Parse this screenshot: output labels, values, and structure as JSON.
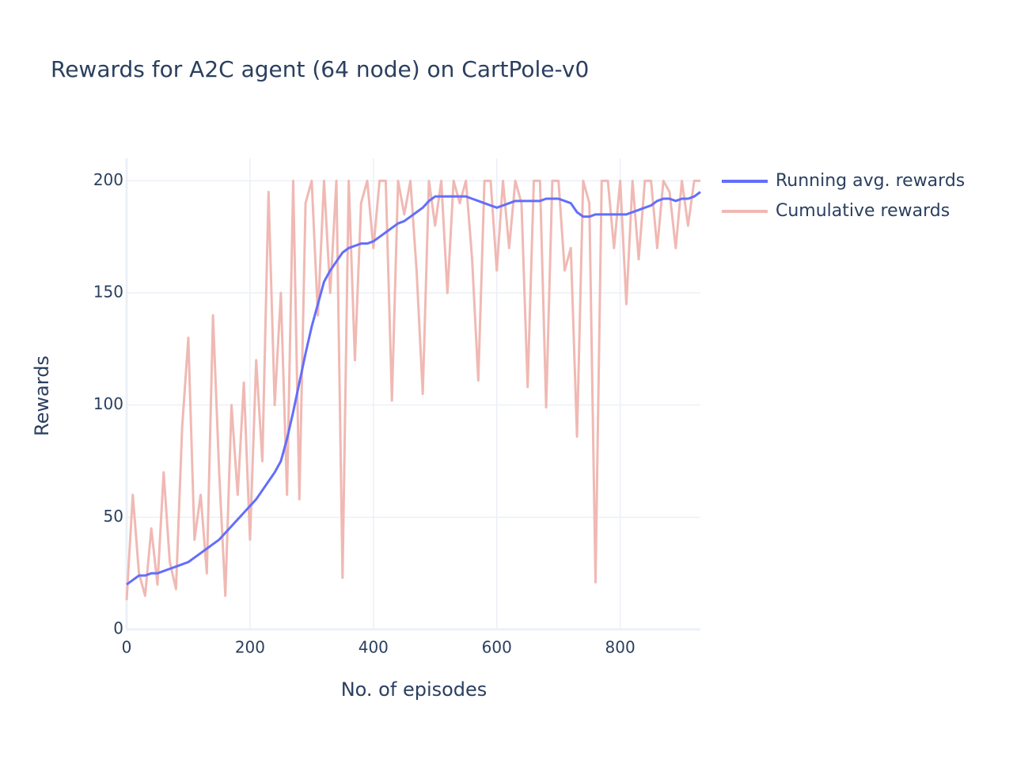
{
  "chart_data": {
    "type": "line",
    "title": "Rewards for A2C agent (64 node) on CartPole-v0",
    "x_label": "No. of episodes",
    "y_label": "Rewards",
    "x": [
      0,
      10,
      20,
      30,
      40,
      50,
      60,
      70,
      80,
      90,
      100,
      110,
      120,
      130,
      140,
      150,
      160,
      170,
      180,
      190,
      200,
      210,
      220,
      230,
      240,
      250,
      260,
      270,
      280,
      290,
      300,
      310,
      320,
      330,
      340,
      350,
      360,
      370,
      380,
      390,
      400,
      410,
      420,
      430,
      440,
      450,
      460,
      470,
      480,
      490,
      500,
      510,
      520,
      530,
      540,
      550,
      560,
      570,
      580,
      590,
      600,
      610,
      620,
      630,
      640,
      650,
      660,
      670,
      680,
      690,
      700,
      710,
      720,
      730,
      740,
      750,
      760,
      770,
      780,
      790,
      800,
      810,
      820,
      830,
      840,
      850,
      860,
      870,
      880,
      890,
      900,
      910,
      920,
      930
    ],
    "series": [
      {
        "name": "Running avg. rewards",
        "color": "#636efa",
        "values": [
          20,
          22,
          24,
          24,
          25,
          25,
          26,
          27,
          28,
          29,
          30,
          32,
          34,
          36,
          38,
          40,
          43,
          46,
          49,
          52,
          55,
          58,
          62,
          66,
          70,
          75,
          85,
          97,
          110,
          123,
          135,
          145,
          155,
          160,
          164,
          168,
          170,
          171,
          172,
          172,
          173,
          175,
          177,
          179,
          181,
          182,
          184,
          186,
          188,
          191,
          193,
          193,
          193,
          193,
          193,
          193,
          192,
          191,
          190,
          189,
          188,
          189,
          190,
          191,
          191,
          191,
          191,
          191,
          192,
          192,
          192,
          191,
          190,
          186,
          184,
          184,
          185,
          185,
          185,
          185,
          185,
          185,
          186,
          187,
          188,
          189,
          191,
          192,
          192,
          191,
          192,
          192,
          193,
          195
        ]
      },
      {
        "name": "Cumulative rewards",
        "color": "#f0b9b4",
        "values": [
          13,
          60,
          25,
          15,
          45,
          20,
          70,
          30,
          18,
          90,
          130,
          40,
          60,
          25,
          140,
          70,
          15,
          100,
          60,
          110,
          40,
          120,
          75,
          195,
          100,
          150,
          60,
          200,
          58,
          190,
          200,
          140,
          200,
          150,
          200,
          23,
          200,
          120,
          190,
          200,
          170,
          200,
          200,
          102,
          200,
          185,
          200,
          160,
          105,
          200,
          180,
          200,
          150,
          200,
          190,
          200,
          165,
          111,
          200,
          200,
          160,
          200,
          170,
          200,
          190,
          108,
          200,
          200,
          99,
          200,
          200,
          160,
          170,
          86,
          200,
          190,
          21,
          200,
          200,
          170,
          200,
          145,
          200,
          165,
          200,
          200,
          170,
          200,
          195,
          170,
          200,
          180,
          200,
          200
        ]
      }
    ],
    "xlim": [
      0,
      930
    ],
    "ylim": [
      0,
      210
    ],
    "xticks": [
      0,
      200,
      400,
      600,
      800
    ],
    "yticks": [
      0,
      50,
      100,
      150,
      200
    ],
    "grid": true
  }
}
